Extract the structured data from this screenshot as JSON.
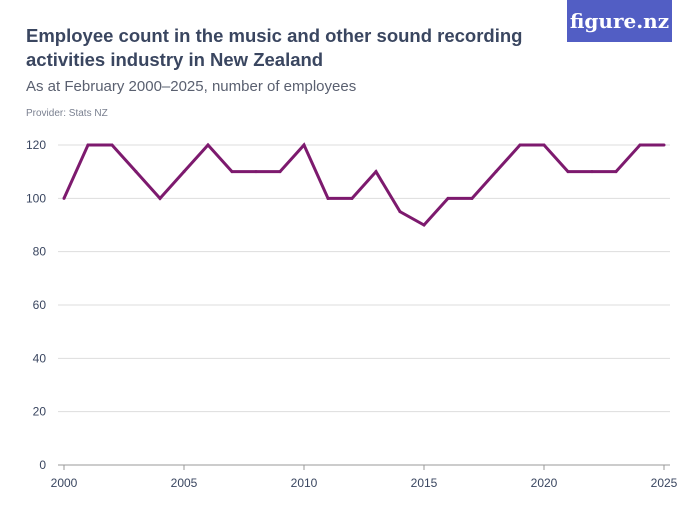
{
  "header": {
    "title": "Employee count in the music and other sound recording activities industry in New Zealand",
    "subtitle": "As at February 2000–2025, number of employees",
    "provider": "Provider: Stats NZ",
    "logo": "figure.nz"
  },
  "colors": {
    "line": "#7d1a6e",
    "grid": "#dddddd",
    "logo_bg": "#525ec4"
  },
  "chart_data": {
    "type": "line",
    "title": "Employee count in the music and other sound recording activities industry in New Zealand",
    "subtitle": "As at February 2000–2025, number of employees",
    "xlabel": "",
    "ylabel": "",
    "xlim": [
      2000,
      2025
    ],
    "ylim": [
      0,
      120
    ],
    "x_ticks": [
      2000,
      2005,
      2010,
      2015,
      2020,
      2025
    ],
    "y_ticks": [
      0,
      20,
      40,
      60,
      80,
      100,
      120
    ],
    "grid": true,
    "x": [
      2000,
      2001,
      2002,
      2003,
      2004,
      2005,
      2006,
      2007,
      2008,
      2009,
      2010,
      2011,
      2012,
      2013,
      2014,
      2015,
      2016,
      2017,
      2018,
      2019,
      2020,
      2021,
      2022,
      2023,
      2024,
      2025
    ],
    "values": [
      100,
      120,
      120,
      110,
      100,
      110,
      120,
      110,
      110,
      110,
      120,
      100,
      100,
      110,
      95,
      90,
      100,
      100,
      110,
      120,
      120,
      110,
      110,
      110,
      120,
      120
    ]
  }
}
